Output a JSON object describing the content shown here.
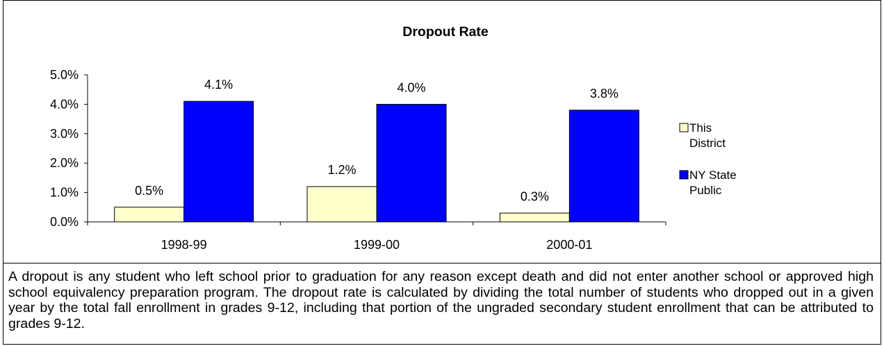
{
  "chart_data": {
    "type": "bar",
    "title": "Dropout Rate",
    "categories": [
      "1998-99",
      "1999-00",
      "2000-01"
    ],
    "series": [
      {
        "name": "This District",
        "legend_lines": [
          "This",
          "District"
        ],
        "values": [
          0.5,
          1.2,
          0.3
        ],
        "labels": [
          "0.5%",
          "1.2%",
          "0.3%"
        ],
        "color": "#FFFFCC"
      },
      {
        "name": "NY State Public",
        "legend_lines": [
          "NY State",
          "Public"
        ],
        "values": [
          4.1,
          4.0,
          3.8
        ],
        "labels": [
          "4.1%",
          "4.0%",
          "3.8%"
        ],
        "color": "#0000FF"
      }
    ],
    "ylim": [
      0,
      5
    ],
    "yticks": [
      0,
      1,
      2,
      3,
      4,
      5
    ],
    "ytick_labels": [
      "0.0%",
      "1.0%",
      "2.0%",
      "3.0%",
      "4.0%",
      "5.0%"
    ],
    "xlabel": "",
    "ylabel": "",
    "grid": false,
    "legend_position": "right"
  },
  "caption": "A dropout is any student who left school prior to graduation for any reason except death and did not enter another school or approved high school equivalency preparation program.  The dropout rate is calculated by dividing the total number of students who dropped out in a given year by the total fall enrollment in grades 9-12, including that portion of the ungraded secondary student enrollment that can be attributed to grades 9-12."
}
